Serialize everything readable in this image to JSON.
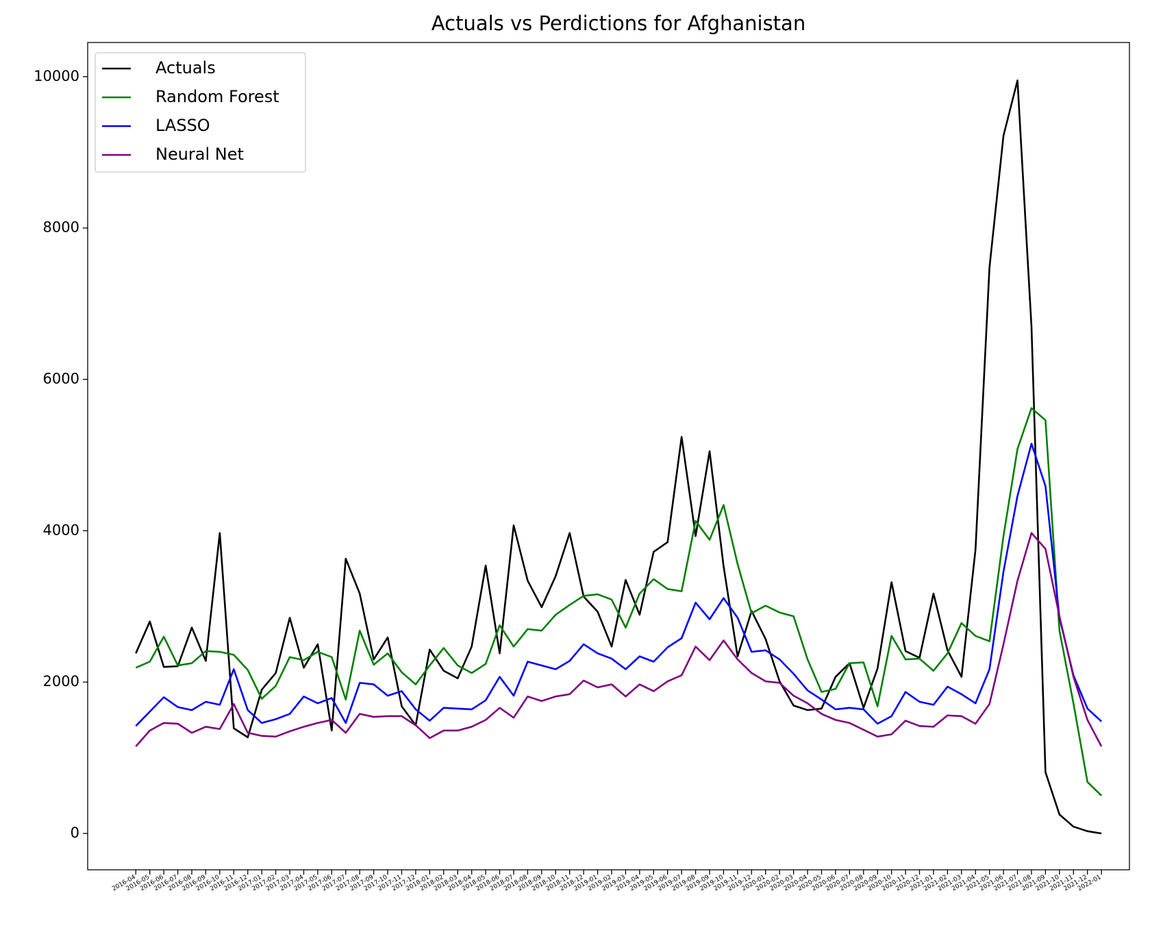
{
  "chart_data": {
    "type": "line",
    "title": "Actuals vs Perdictions for Afghanistan",
    "categories": [
      "2016-04",
      "2016-05",
      "2016-06",
      "2016-07",
      "2016-08",
      "2016-09",
      "2016-10",
      "2016-11",
      "2016-12",
      "2017-01",
      "2017-02",
      "2017-03",
      "2017-04",
      "2017-05",
      "2017-06",
      "2017-07",
      "2017-08",
      "2017-09",
      "2017-10",
      "2017-11",
      "2017-12",
      "2018-01",
      "2018-02",
      "2018-03",
      "2018-04",
      "2018-05",
      "2018-06",
      "2018-07",
      "2018-08",
      "2018-09",
      "2018-10",
      "2018-11",
      "2018-12",
      "2019-01",
      "2019-02",
      "2019-03",
      "2019-04",
      "2019-05",
      "2019-06",
      "2019-07",
      "2019-08",
      "2019-09",
      "2019-10",
      "2019-11",
      "2019-12",
      "2020-01",
      "2020-02",
      "2020-03",
      "2020-04",
      "2020-05",
      "2020-06",
      "2020-07",
      "2020-08",
      "2020-09",
      "2020-10",
      "2020-11",
      "2020-12",
      "2021-01",
      "2021-02",
      "2021-03",
      "2021-04",
      "2021-05",
      "2021-06",
      "2021-07",
      "2021-08",
      "2021-09",
      "2021-10",
      "2021-11",
      "2021-12",
      "2022-01"
    ],
    "series": [
      {
        "name": "Actuals",
        "color": "#000000",
        "values": [
          2380,
          2800,
          2200,
          2210,
          2720,
          2280,
          3970,
          1390,
          1270,
          1900,
          2120,
          2850,
          2190,
          2500,
          1360,
          3630,
          3170,
          2300,
          2590,
          1680,
          1430,
          2430,
          2150,
          2050,
          2470,
          3540,
          2380,
          4070,
          3340,
          2990,
          3400,
          3970,
          3130,
          2930,
          2470,
          3350,
          2890,
          3720,
          3850,
          5240,
          3930,
          5050,
          3530,
          2340,
          2940,
          2570,
          2010,
          1690,
          1630,
          1650,
          2070,
          2250,
          1660,
          2180,
          3320,
          2410,
          2320,
          3170,
          2420,
          2070,
          3750,
          7480,
          9220,
          9950,
          6700,
          810,
          250,
          90,
          30,
          0
        ]
      },
      {
        "name": "Random Forest",
        "color": "#008000",
        "values": [
          2190,
          2270,
          2600,
          2220,
          2250,
          2410,
          2400,
          2360,
          2160,
          1780,
          1950,
          2330,
          2290,
          2400,
          2330,
          1770,
          2680,
          2230,
          2380,
          2130,
          1970,
          2220,
          2450,
          2220,
          2120,
          2240,
          2750,
          2470,
          2700,
          2680,
          2890,
          3020,
          3140,
          3160,
          3090,
          2720,
          3170,
          3360,
          3230,
          3200,
          4130,
          3880,
          4340,
          3560,
          2910,
          3010,
          2920,
          2870,
          2300,
          1870,
          1910,
          2250,
          2260,
          1680,
          2610,
          2300,
          2310,
          2150,
          2380,
          2780,
          2610,
          2540,
          3930,
          5080,
          5620,
          5460,
          2680,
          1720,
          680,
          500
        ]
      },
      {
        "name": "LASSO",
        "color": "#0000ff",
        "values": [
          1420,
          1610,
          1800,
          1670,
          1630,
          1740,
          1700,
          2170,
          1630,
          1460,
          1510,
          1580,
          1810,
          1720,
          1790,
          1460,
          1990,
          1970,
          1820,
          1880,
          1640,
          1490,
          1660,
          1650,
          1640,
          1760,
          2070,
          1820,
          2270,
          2220,
          2170,
          2280,
          2500,
          2380,
          2310,
          2170,
          2340,
          2270,
          2460,
          2580,
          3050,
          2830,
          3110,
          2850,
          2400,
          2420,
          2300,
          2110,
          1890,
          1770,
          1640,
          1660,
          1640,
          1450,
          1550,
          1870,
          1740,
          1700,
          1940,
          1840,
          1720,
          2170,
          3460,
          4460,
          5150,
          4590,
          2850,
          2090,
          1650,
          1480
        ]
      },
      {
        "name": "Neural Net",
        "color": "#800080",
        "values": [
          1150,
          1360,
          1460,
          1450,
          1330,
          1410,
          1380,
          1710,
          1330,
          1290,
          1280,
          1350,
          1410,
          1460,
          1500,
          1330,
          1580,
          1540,
          1550,
          1550,
          1430,
          1260,
          1360,
          1360,
          1410,
          1500,
          1660,
          1530,
          1810,
          1750,
          1810,
          1840,
          2020,
          1930,
          1970,
          1810,
          1970,
          1880,
          2010,
          2090,
          2470,
          2290,
          2550,
          2300,
          2120,
          2010,
          1990,
          1820,
          1720,
          1580,
          1500,
          1460,
          1370,
          1280,
          1310,
          1490,
          1420,
          1410,
          1560,
          1550,
          1450,
          1710,
          2500,
          3340,
          3970,
          3760,
          2870,
          2070,
          1500,
          1150
        ]
      }
    ],
    "ylim": [
      -480,
      10451
    ],
    "yticks": [
      0,
      2000,
      4000,
      6000,
      8000,
      10000
    ],
    "legend": "upper left",
    "grid": false
  }
}
